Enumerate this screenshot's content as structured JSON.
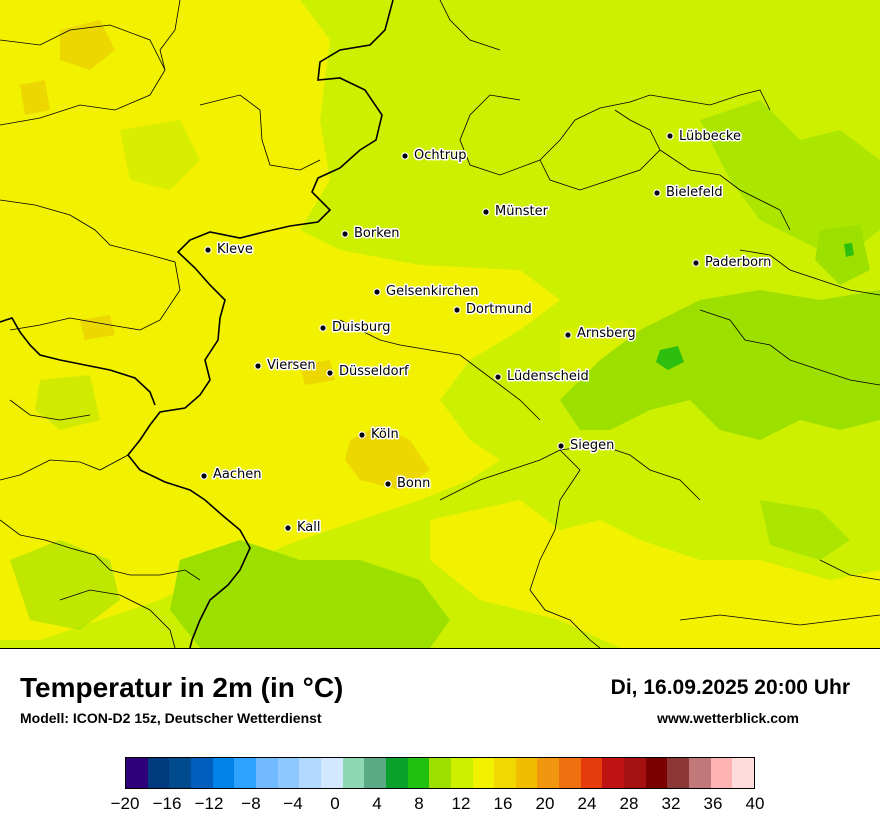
{
  "title": "Temperatur in 2m (in °C)",
  "subtitle": "Modell: ICON-D2 15z, Deutscher Wetterdienst",
  "datetime": "Di, 16.09.2025 20:00 Uhr",
  "website": "www.wetterblick.com",
  "colors": {
    "map_base": "#cdf000",
    "warm_yellow": "#f2f200",
    "hot_patch": "#ecd700",
    "cool_green": "#9de000",
    "coolest_green": "#2dbf10"
  },
  "cities": [
    {
      "name": "Lübbecke"
    },
    {
      "name": "Ochtrup"
    },
    {
      "name": "Bielefeld"
    },
    {
      "name": "Münster"
    },
    {
      "name": "Borken"
    },
    {
      "name": "Kleve"
    },
    {
      "name": "Paderborn"
    },
    {
      "name": "Gelsenkirchen"
    },
    {
      "name": "Dortmund"
    },
    {
      "name": "Duisburg"
    },
    {
      "name": "Arnsberg"
    },
    {
      "name": "Viersen"
    },
    {
      "name": "Düsseldorf"
    },
    {
      "name": "Lüdenscheid"
    },
    {
      "name": "Köln"
    },
    {
      "name": "Siegen"
    },
    {
      "name": "Aachen"
    },
    {
      "name": "Bonn"
    },
    {
      "name": "Kall"
    }
  ],
  "legend": {
    "ticks": [
      "−20",
      "−16",
      "−12",
      "−8",
      "−4",
      "0",
      "4",
      "8",
      "12",
      "16",
      "20",
      "24",
      "28",
      "32",
      "36",
      "40"
    ],
    "colors": [
      "#30007a",
      "#003b80",
      "#004a8e",
      "#005fbd",
      "#0083e8",
      "#2ea2ff",
      "#71baff",
      "#8ec8ff",
      "#b2d9ff",
      "#d2e8ff",
      "#8ed8b4",
      "#5aaa86",
      "#0aa02c",
      "#20c010",
      "#9de000",
      "#cdf000",
      "#f2f200",
      "#f0d800",
      "#f2bd00",
      "#f2960f",
      "#f07010",
      "#e63c0c",
      "#c01414",
      "#a51010",
      "#7a0000",
      "#8c3636",
      "#c07878",
      "#ffb4b4",
      "#ffdcdc"
    ]
  }
}
